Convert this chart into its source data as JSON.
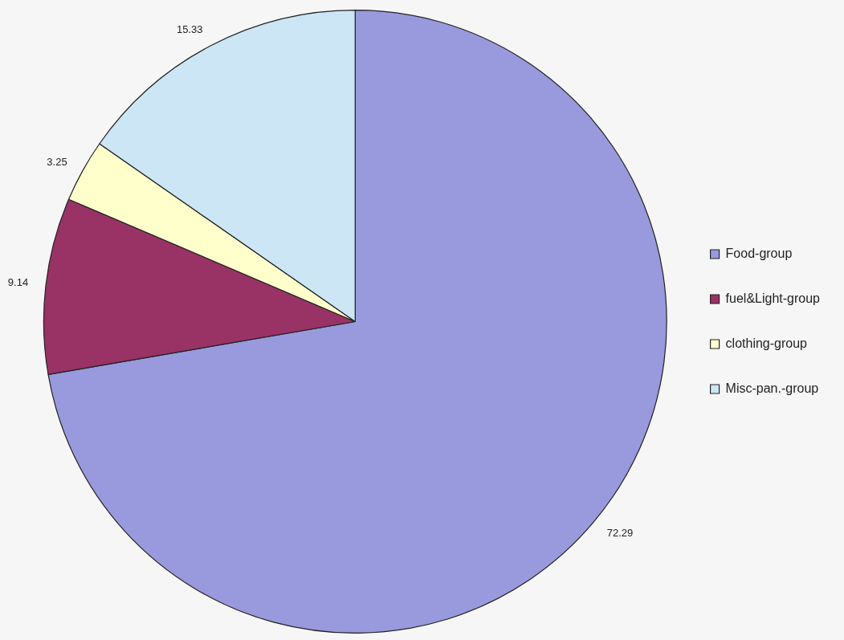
{
  "chart_data": {
    "type": "pie",
    "categories": [
      "Food-group",
      "fuel&Light-group",
      "clothing-group",
      "Misc-pan.-group"
    ],
    "values": [
      72.29,
      9.14,
      3.25,
      15.33
    ],
    "colors": [
      "#9999dd",
      "#993366",
      "#ffffcc",
      "#cce6f5"
    ],
    "data_labels": true,
    "legend": "right"
  }
}
